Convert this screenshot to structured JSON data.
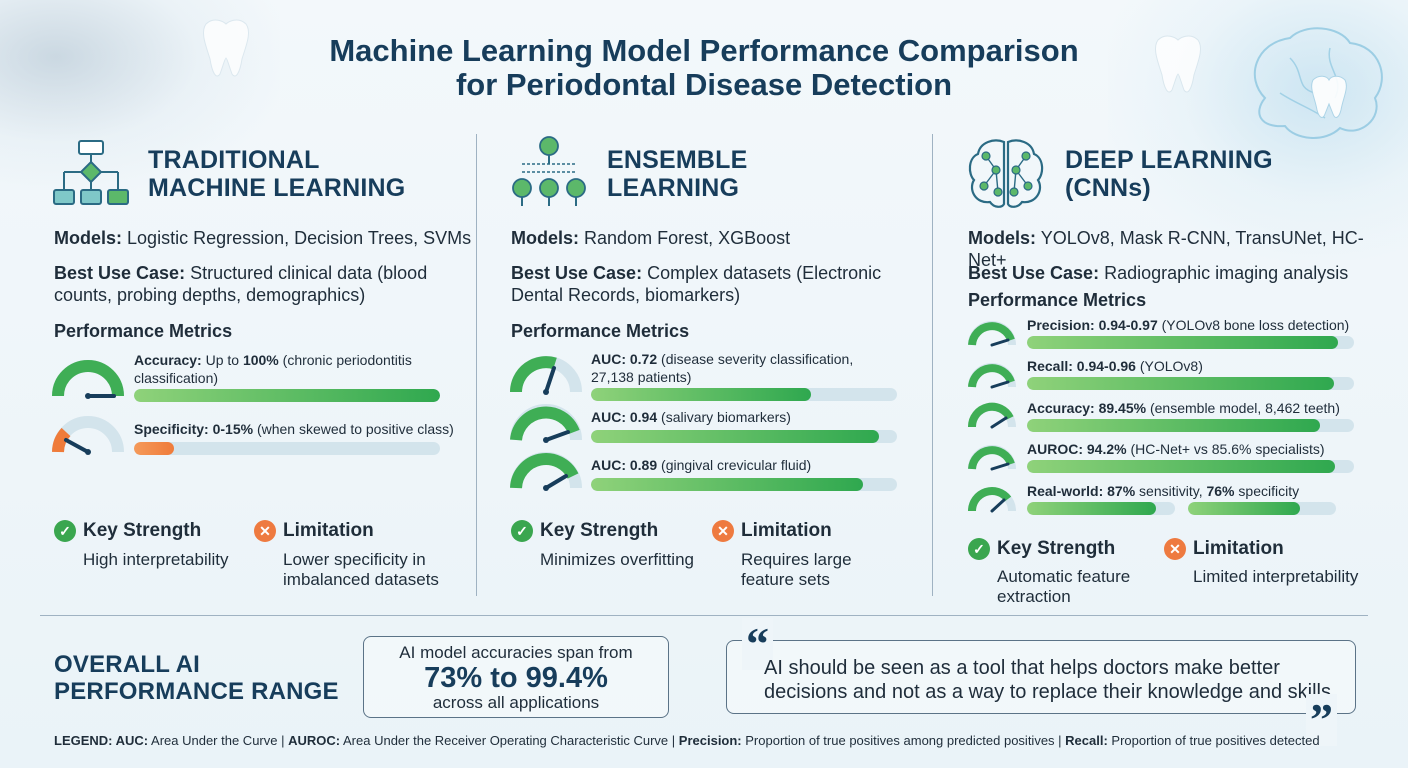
{
  "title": {
    "line1": "Machine Learning Model Performance Comparison",
    "line2": "for Periodontal Disease Detection"
  },
  "columns": [
    {
      "title_line1": "TRADITIONAL",
      "title_line2": "MACHINE LEARNING",
      "icon": "flowchart-icon",
      "models_label": "Models:",
      "models": "Logistic Regression, Decision Trees, SVMs",
      "use_label": "Best Use Case:",
      "use_line1": "Structured clinical data (blood",
      "use_line2": "counts, probing depths, demographics)",
      "perf_label": "Performance Metrics",
      "metrics": [
        {
          "label": "Accuracy:",
          "pre": "Up to",
          "value": "100%",
          "desc": "(chronic periodontitis",
          "desc2": "classification)",
          "percent": 100,
          "color": "#2fa84f"
        },
        {
          "label": "Specificity:",
          "value": "0-15%",
          "desc": "(when skewed to positive class)",
          "percent": 13,
          "color": "#ef7b3a"
        }
      ],
      "strength_head": "Key Strength",
      "strength_line1": "High interpretability",
      "strength_line2": "",
      "limit_head": "Limitation",
      "limit_line1": "Lower specificity in",
      "limit_line2": "imbalanced datasets"
    },
    {
      "title_line1": "ENSEMBLE",
      "title_line2": "LEARNING",
      "icon": "trees-icon",
      "models_label": "Models:",
      "models": "Random Forest, XGBoost",
      "use_label": "Best Use Case:",
      "use_line1": "Complex datasets (Electronic",
      "use_line2": "Dental Records, biomarkers)",
      "perf_label": "Performance Metrics",
      "metrics": [
        {
          "label": "AUC: 0.72",
          "desc": "(disease severity classification,",
          "desc2": "27,138 patients)",
          "percent": 72
        },
        {
          "label": "AUC: 0.94",
          "desc": "(salivary biomarkers)",
          "percent": 94
        },
        {
          "label": "AUC: 0.89",
          "desc": "(gingival crevicular fluid)",
          "percent": 89
        }
      ],
      "strength_head": "Key Strength",
      "strength_line1": "Minimizes overfitting",
      "limit_head": "Limitation",
      "limit_line1": "Requires large",
      "limit_line2": "feature sets"
    },
    {
      "title_line1": "DEEP LEARNING",
      "title_line2": "(CNNs)",
      "icon": "brain-network-icon",
      "models_label": "Models:",
      "models": "YOLOv8, Mask R-CNN, TransUNet, HC-Net+",
      "use_label": "Best Use Case:",
      "use_line1": "Radiographic imaging analysis",
      "perf_label": "Performance Metrics",
      "metrics": [
        {
          "label": "Precision: 0.94-0.97",
          "desc": "(YOLOv8 bone loss detection)",
          "percent": 95
        },
        {
          "label": "Recall: 0.94-0.96",
          "desc": "(YOLOv8)",
          "percent": 94
        },
        {
          "label": "Accuracy: 89.45%",
          "desc": "(ensemble model, 8,462 teeth)",
          "percent": 89.45
        },
        {
          "label": "AUROC: 94.2%",
          "desc": "(HC-Net+ vs 85.6% specialists)",
          "percent": 94.2
        },
        {
          "label": "Real-world:",
          "v1": "87%",
          "t1": "sensitivity,",
          "v2": "76%",
          "t2": "specificity",
          "percent": 87,
          "percent2": 76
        }
      ],
      "strength_head": "Key Strength",
      "strength_line1": "Automatic feature",
      "strength_line2": "extraction",
      "limit_head": "Limitation",
      "limit_line1": "Limited interpretability"
    }
  ],
  "overall": {
    "label_line1": "OVERALL AI",
    "label_line2": "PERFORMANCE RANGE",
    "box_top": "AI model accuracies span from",
    "box_big": "73% to 99.4%",
    "box_bottom": "across all applications"
  },
  "quote": {
    "line1": "AI should be seen as a tool that helps doctors make better",
    "line2": "decisions and not as a way to replace their knowledge and skills",
    "open": "“",
    "close": "”"
  },
  "legend": {
    "k1": "LEGEND: AUC:",
    "v1": "Area Under the Curve |",
    "k2": "AUROC:",
    "v2": "Area Under the Receiver Operating Characteristic Curve |",
    "k3": "Precision:",
    "v3": "Proportion of true positives among predicted positives |",
    "k4": "Recall:",
    "v4": "Proportion of true positives detected"
  },
  "colors": {
    "green": "#2fa84f",
    "orange": "#ef7b3a",
    "navy": "#173d5b",
    "track": "#d3e4ec"
  }
}
